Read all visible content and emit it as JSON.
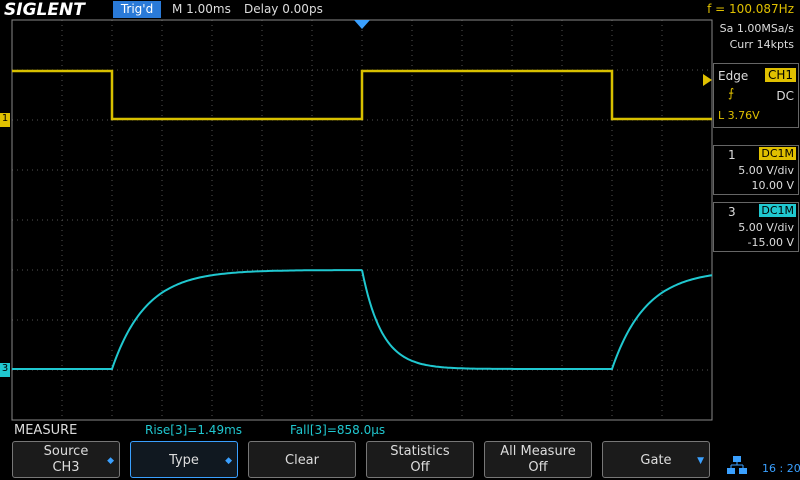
{
  "header": {
    "brand": "SIGLENT",
    "status": "Trig'd",
    "timebase": "M 1.00ms",
    "delay": "Delay 0.00ps",
    "frequency": "f = 100.087Hz"
  },
  "acquisition": {
    "sample_rate": "Sa 1.00MSa/s",
    "memory": "Curr 14kpts"
  },
  "trigger": {
    "type": "Edge",
    "source": "CH1",
    "coupling": "DC",
    "level": "L  3.76V"
  },
  "channels": [
    {
      "number": "1",
      "coupling": "DC1M",
      "scale": "5.00 V/div",
      "offset": "10.00 V"
    },
    {
      "number": "3",
      "coupling": "DC1M",
      "scale": "5.00 V/div",
      "offset": "-15.00 V"
    }
  ],
  "measure": {
    "title": "MEASURE",
    "results": [
      "Rise[3]=1.49ms",
      "Fall[3]=858.0µs"
    ]
  },
  "softkeys": [
    {
      "label": "Source",
      "value": "CH3"
    },
    {
      "label": "Type"
    },
    {
      "label": "Clear"
    },
    {
      "label": "Statistics",
      "value": "Off"
    },
    {
      "label": "All Measure",
      "value": "Off"
    },
    {
      "label": "Gate"
    }
  ],
  "clock": "16 : 20"
}
